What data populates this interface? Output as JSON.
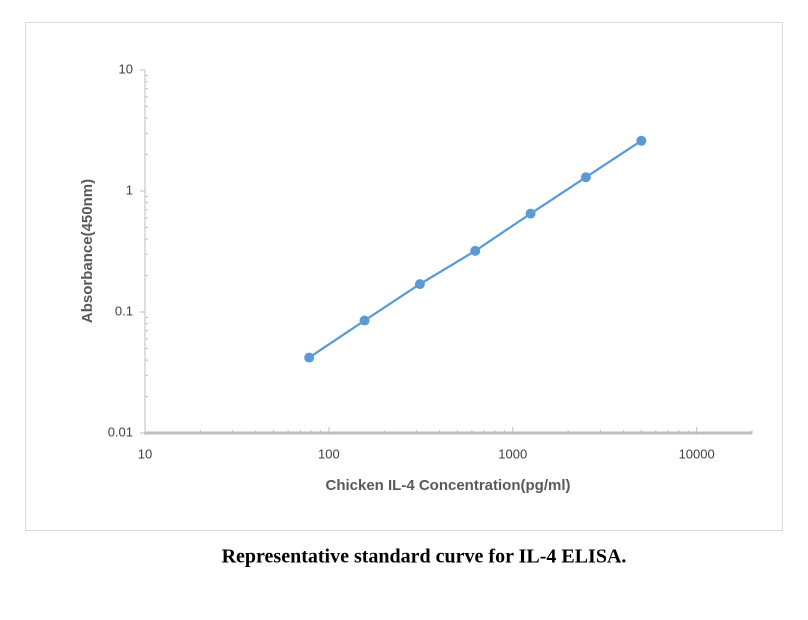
{
  "chart_data": {
    "type": "line",
    "caption": "Representative standard curve for IL-4 ELISA.",
    "xlabel": "Chicken  IL-4  Concentration(pg/ml)",
    "ylabel": "Absorbance(450nm)",
    "x": [
      78.125,
      156.25,
      312.5,
      625,
      1250,
      2500,
      5000
    ],
    "values": [
      0.042,
      0.085,
      0.17,
      0.32,
      0.65,
      1.3,
      2.6
    ],
    "color": "#5b9bd5",
    "xscale": "log",
    "yscale": "log",
    "xlim": [
      10,
      20000
    ],
    "xticks": [
      10,
      100,
      1000,
      10000
    ],
    "ylim": [
      0.01,
      10
    ],
    "yticks": [
      0.01,
      0.1,
      1,
      10
    ],
    "grid": false
  }
}
